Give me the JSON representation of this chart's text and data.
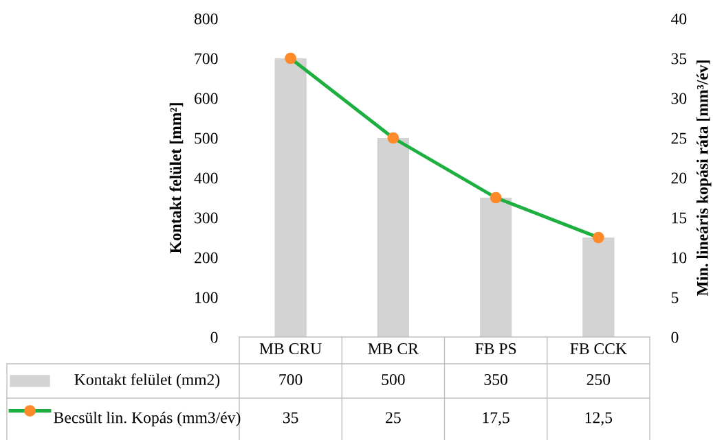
{
  "chart_data": {
    "type": "bar",
    "ylabel": "Kontakt felület [mm²]",
    "y2label": "Min. lineáris kopási ráta [mm³/év]",
    "categories": [
      "MB CRU",
      "MB CR",
      "FB PS",
      "FB CCK"
    ],
    "series": [
      {
        "name": "Kontakt felület (mm2)",
        "color": "#d3d3d3",
        "values": [
          700,
          500,
          350,
          250
        ],
        "value_labels": [
          "700",
          "500",
          "350",
          "250"
        ]
      },
      {
        "name": "Becsült lin. Kopás (mm3/év)",
        "type": "line",
        "axis": "y2",
        "color": "#1db040",
        "marker": "circle",
        "values": [
          35,
          25,
          17.5,
          12.5
        ],
        "value_labels": [
          "35",
          "25",
          "17,5",
          "12,5"
        ]
      }
    ],
    "ylim": [
      0,
      800
    ],
    "yticks": [
      0,
      100,
      200,
      300,
      400,
      500,
      600,
      700,
      800
    ],
    "y2lim": [
      0,
      40
    ],
    "y2ticks": [
      0,
      5,
      10,
      15,
      20,
      25,
      30,
      35,
      40
    ],
    "grid": false,
    "legend": "bottom",
    "data_labels": true
  }
}
